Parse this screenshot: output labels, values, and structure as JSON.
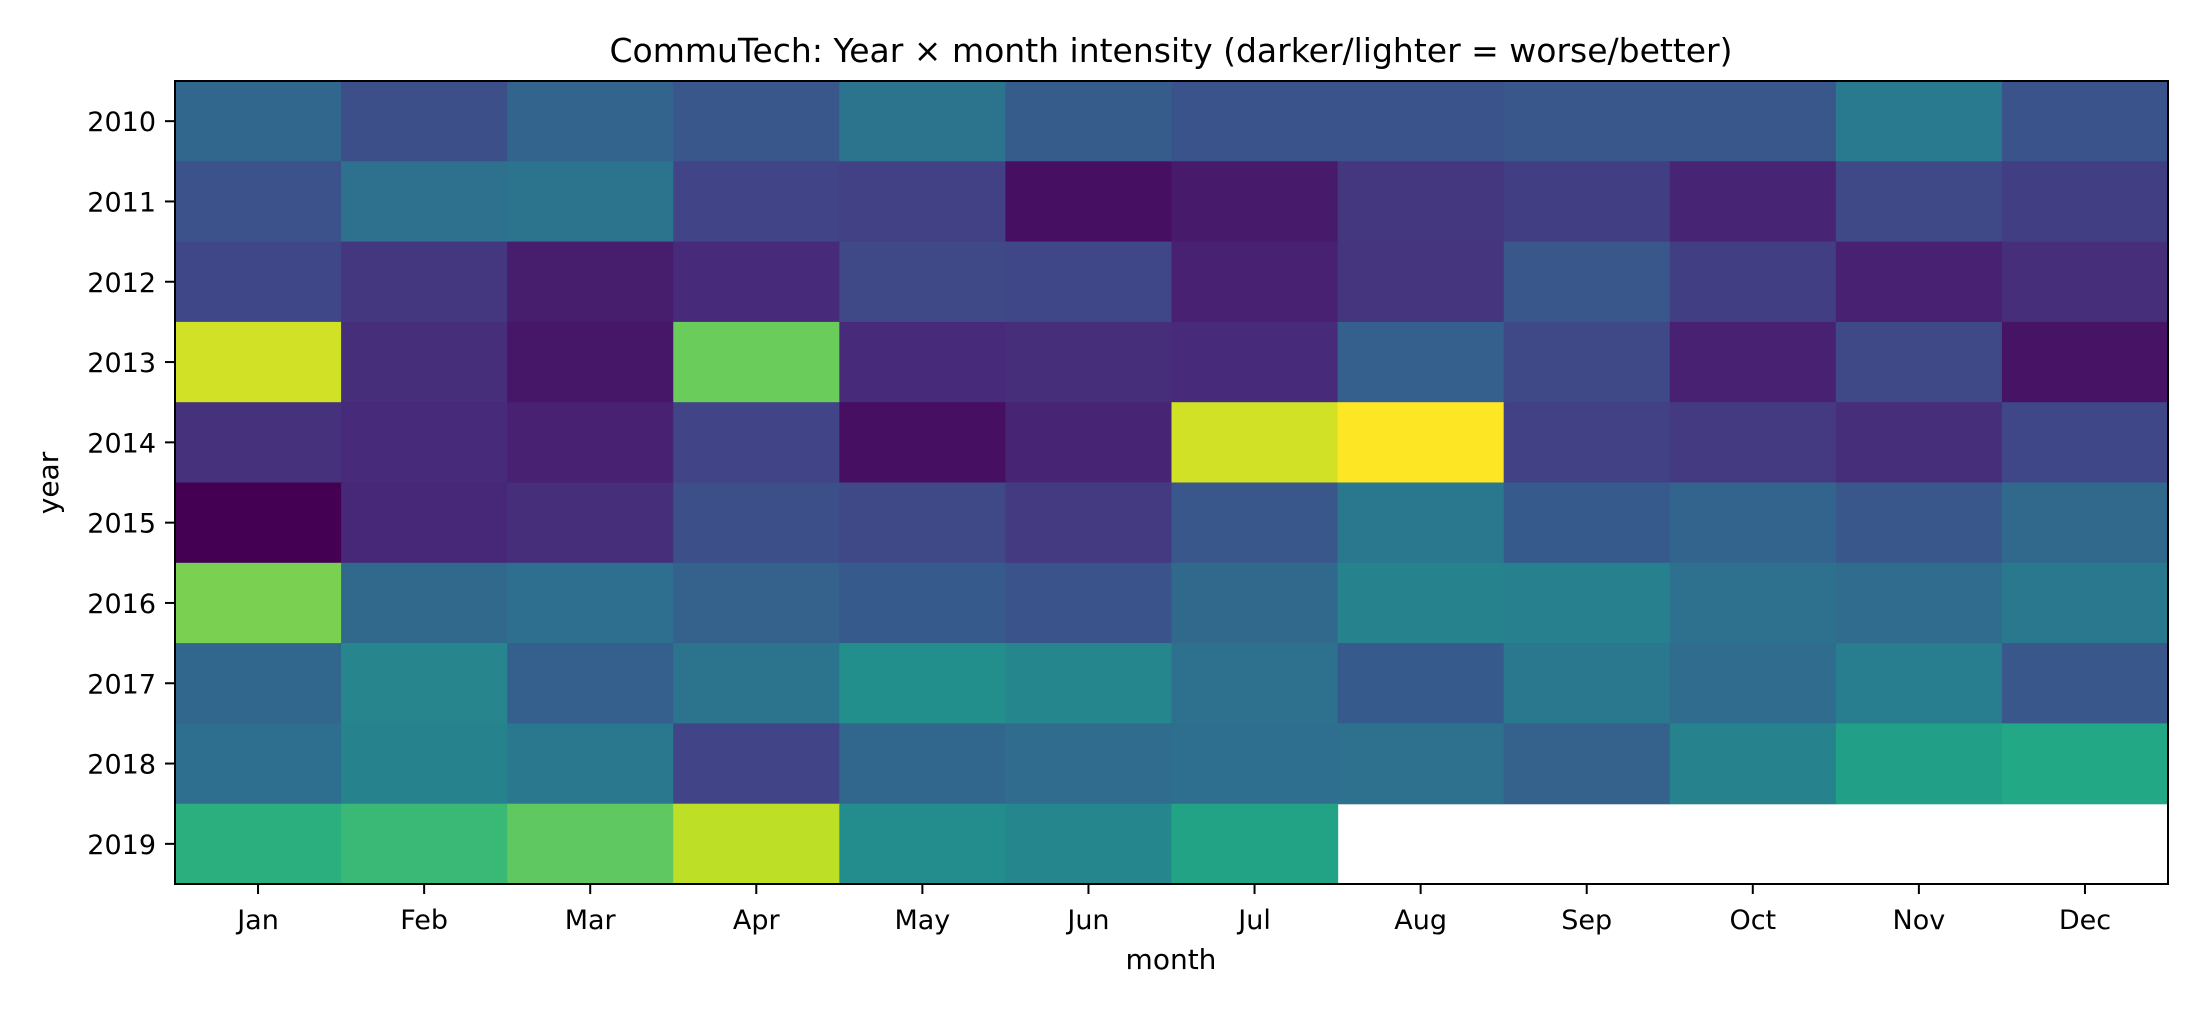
{
  "chart_data": {
    "type": "heatmap",
    "title": "CommuTech: Year × month intensity (darker/lighter = worse/better)",
    "xlabel": "month",
    "ylabel": "year",
    "x_categories": [
      "Jan",
      "Feb",
      "Mar",
      "Apr",
      "May",
      "Jun",
      "Jul",
      "Aug",
      "Sep",
      "Oct",
      "Nov",
      "Dec"
    ],
    "y_categories": [
      "2010",
      "2011",
      "2012",
      "2013",
      "2014",
      "2015",
      "2016",
      "2017",
      "2018",
      "2019"
    ],
    "colormap": "viridis",
    "value_range": [
      0,
      1
    ],
    "legend": "none",
    "grid": false,
    "values": [
      [
        0.33,
        0.24,
        0.32,
        0.27,
        0.38,
        0.29,
        0.26,
        0.26,
        0.27,
        0.27,
        0.41,
        0.26
      ],
      [
        0.25,
        0.37,
        0.38,
        0.2,
        0.19,
        0.04,
        0.07,
        0.16,
        0.18,
        0.1,
        0.22,
        0.18
      ],
      [
        0.21,
        0.16,
        0.08,
        0.12,
        0.22,
        0.21,
        0.09,
        0.15,
        0.27,
        0.18,
        0.09,
        0.13
      ],
      [
        0.93,
        0.13,
        0.06,
        0.77,
        0.12,
        0.13,
        0.12,
        0.3,
        0.22,
        0.09,
        0.22,
        0.05
      ],
      [
        0.14,
        0.12,
        0.09,
        0.2,
        0.04,
        0.1,
        0.93,
        1.0,
        0.19,
        0.17,
        0.13,
        0.21
      ],
      [
        0.0,
        0.11,
        0.13,
        0.24,
        0.22,
        0.17,
        0.27,
        0.4,
        0.28,
        0.32,
        0.27,
        0.34
      ],
      [
        0.8,
        0.34,
        0.36,
        0.31,
        0.28,
        0.26,
        0.34,
        0.44,
        0.43,
        0.37,
        0.35,
        0.4
      ],
      [
        0.33,
        0.45,
        0.3,
        0.38,
        0.49,
        0.46,
        0.37,
        0.28,
        0.4,
        0.35,
        0.42,
        0.27
      ],
      [
        0.36,
        0.44,
        0.4,
        0.2,
        0.33,
        0.35,
        0.36,
        0.37,
        0.31,
        0.44,
        0.56,
        0.6
      ],
      [
        0.63,
        0.67,
        0.75,
        0.9,
        0.48,
        0.46,
        0.58,
        null,
        null,
        null,
        null,
        null
      ]
    ]
  }
}
